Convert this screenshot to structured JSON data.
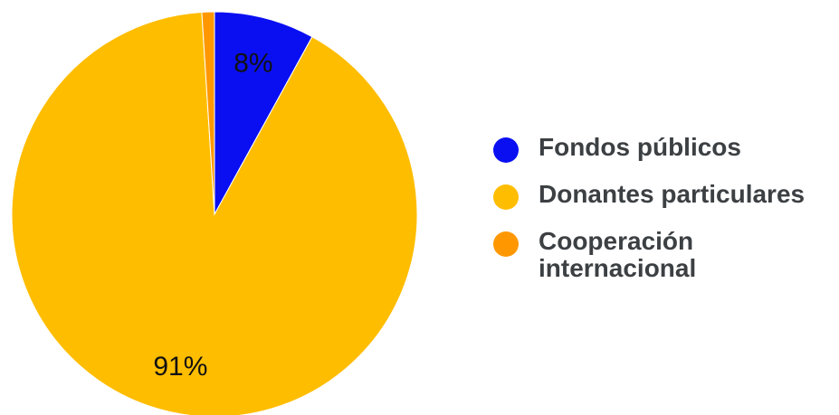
{
  "chart_data": {
    "type": "pie",
    "slices": [
      {
        "label": "Fondos públicos",
        "value": 8,
        "value_label": "8%",
        "color": "#0a0ff2"
      },
      {
        "label": "Donantes particulares",
        "value": 91,
        "value_label": "91%",
        "color": "#ffbd00"
      },
      {
        "label": "Cooperación internacional",
        "value": 1,
        "value_label": "",
        "color": "#ff9800"
      }
    ],
    "legend_position": "right"
  }
}
